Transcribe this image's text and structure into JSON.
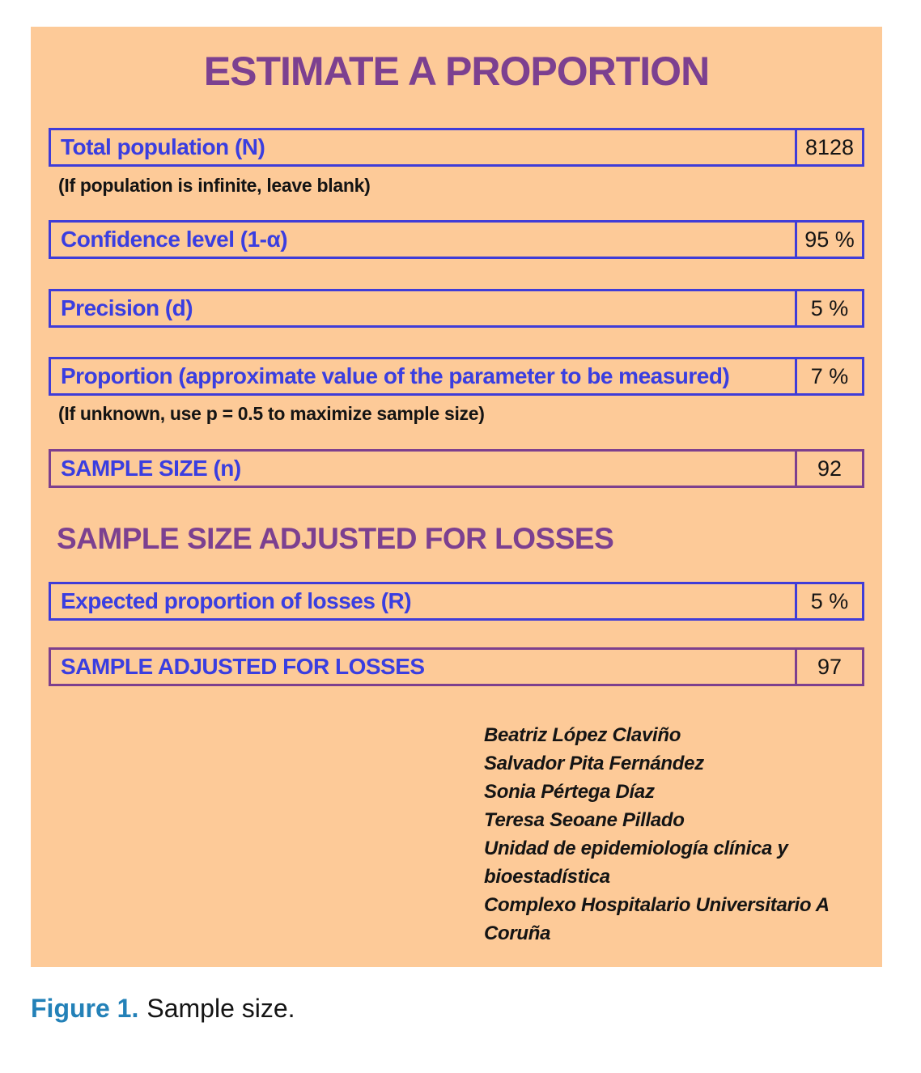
{
  "panel": {
    "title": "ESTIMATE A PROPORTION",
    "section_heading": "SAMPLE SIZE ADJUSTED FOR LOSSES"
  },
  "form": {
    "rows": [
      {
        "label": "Total population (N)",
        "value": "8128"
      },
      {
        "label": "Confidence level (1-α)",
        "value": "95 %"
      },
      {
        "label": "Precision (d)",
        "value": "5 %"
      },
      {
        "label": "Proportion (approximate value of the parameter to be measured)",
        "value": "7 %"
      },
      {
        "label": "SAMPLE SIZE (n)",
        "value": "92"
      },
      {
        "label": "Expected proportion of losses (R)",
        "value": "5 %"
      },
      {
        "label": "SAMPLE ADJUSTED FOR LOSSES",
        "value": "97"
      }
    ],
    "notes": {
      "population": "(If population is infinite, leave blank)",
      "proportion": "(If unknown, use p = 0.5 to maximize sample size)"
    }
  },
  "credits": {
    "lines": [
      "Beatriz López Claviño",
      "Salvador Pita Fernández",
      "Sonia Pértega Díaz",
      "Teresa Seoane Pillado",
      "Unidad de epidemiología clínica y bioestadística",
      "Complexo Hospitalario Universitario A Coruña"
    ]
  },
  "caption": {
    "label": "Figure 1.",
    "text": "Sample size."
  },
  "colors": {
    "panel_background": "#fdca98",
    "label_blue": "#3a3ee0",
    "border_blue": "#3f3cd8",
    "border_purple": "#7d3f8e",
    "heading_purple": "#7c4090",
    "caption_blue": "#2381b8",
    "value_text": "#141414"
  }
}
